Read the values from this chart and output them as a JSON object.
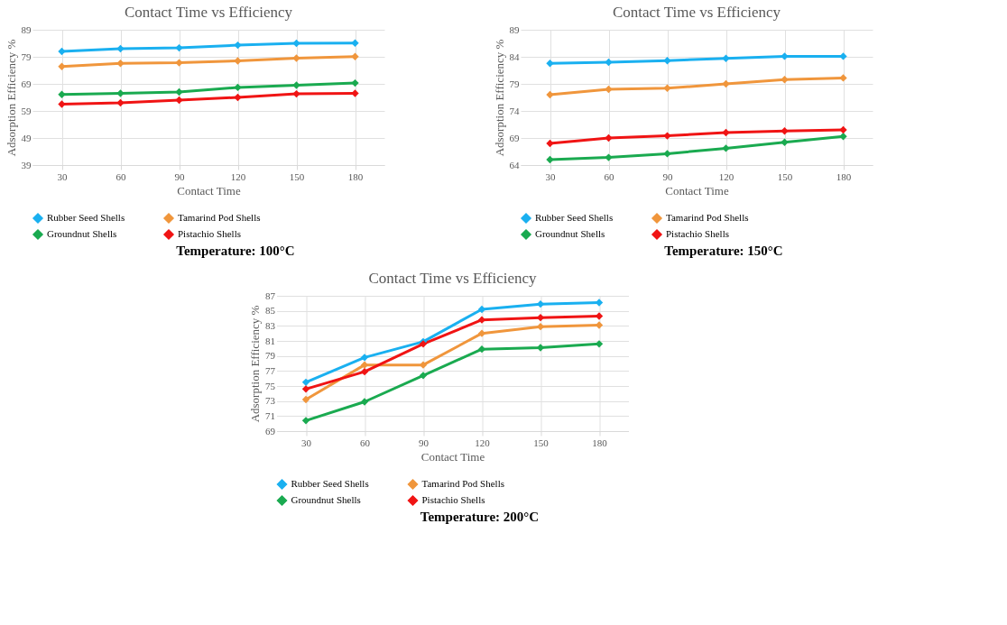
{
  "chart_data": [
    {
      "type": "line",
      "title": "Contact Time vs Efficiency",
      "xlabel": "Contact Time",
      "ylabel": "Adsorption Efficiency %",
      "annotations": [
        "Temperature:  100°C"
      ],
      "x": [
        30,
        60,
        90,
        120,
        150,
        180
      ],
      "xlim": [
        15,
        195
      ],
      "xticks": [
        30,
        60,
        90,
        120,
        150,
        180
      ],
      "ylim": [
        39,
        89
      ],
      "yticks": [
        39,
        49,
        59,
        69,
        79,
        89
      ],
      "grid": true,
      "legend": "bottom",
      "marker": "diamond",
      "line_style": "solid",
      "series": [
        {
          "name": "Rubber Seed Shells",
          "color": "#1ab0f0",
          "values": [
            81.0,
            82.0,
            82.3,
            83.3,
            84.0,
            84.1
          ]
        },
        {
          "name": "Tamarind Pod Shells",
          "color": "#f0963c",
          "values": [
            75.4,
            76.6,
            76.8,
            77.5,
            78.5,
            79.1
          ]
        },
        {
          "name": "Groundnut Shells",
          "color": "#1aaa50",
          "values": [
            65.1,
            65.5,
            66.0,
            67.7,
            68.5,
            69.3
          ]
        },
        {
          "name": "Pistachio Shells",
          "color": "#f01414",
          "values": [
            61.5,
            62.0,
            63.0,
            64.0,
            65.3,
            65.5
          ]
        }
      ]
    },
    {
      "type": "line",
      "title": "Contact Time vs Efficiency",
      "xlabel": "Contact Time",
      "ylabel": "Adsorption Efficiency %",
      "annotations": [
        "Temperature:  150°C"
      ],
      "x": [
        30,
        60,
        90,
        120,
        150,
        180
      ],
      "xlim": [
        15,
        195
      ],
      "xticks": [
        30,
        60,
        90,
        120,
        150,
        180
      ],
      "ylim": [
        64,
        89
      ],
      "yticks": [
        64,
        69,
        74,
        79,
        84,
        89
      ],
      "grid": true,
      "legend": "bottom",
      "marker": "diamond",
      "line_style": "solid",
      "series": [
        {
          "name": "Rubber Seed Shells",
          "color": "#1ab0f0",
          "values": [
            82.8,
            83.0,
            83.3,
            83.7,
            84.1,
            84.1
          ]
        },
        {
          "name": "Tamarind Pod Shells",
          "color": "#f0963c",
          "values": [
            77.0,
            78.0,
            78.2,
            79.0,
            79.8,
            80.1
          ]
        },
        {
          "name": "Groundnut Shells",
          "color": "#1aaa50",
          "values": [
            65.0,
            65.4,
            66.1,
            67.1,
            68.2,
            69.3
          ]
        },
        {
          "name": "Pistachio Shells",
          "color": "#f01414",
          "values": [
            68.0,
            69.0,
            69.4,
            70.0,
            70.3,
            70.5
          ]
        }
      ]
    },
    {
      "type": "line",
      "title": "Contact Time vs Efficiency",
      "xlabel": "Contact Time",
      "ylabel": "Adsorption Efficiency %",
      "annotations": [
        "Temperature:  200°C"
      ],
      "x": [
        30,
        60,
        90,
        120,
        150,
        180
      ],
      "xlim": [
        15,
        195
      ],
      "xticks": [
        30,
        60,
        90,
        120,
        150,
        180
      ],
      "ylim": [
        69,
        87
      ],
      "yticks": [
        69,
        71,
        73,
        75,
        77,
        79,
        81,
        83,
        85,
        87
      ],
      "grid": true,
      "legend": "bottom",
      "marker": "diamond",
      "line_style": "solid",
      "series": [
        {
          "name": "Rubber Seed Shells",
          "color": "#1ab0f0",
          "values": [
            75.5,
            78.8,
            80.9,
            85.2,
            85.9,
            86.1
          ]
        },
        {
          "name": "Tamarind Pod Shells",
          "color": "#f0963c",
          "values": [
            73.2,
            77.8,
            77.8,
            82.0,
            82.9,
            83.1
          ]
        },
        {
          "name": "Groundnut Shells",
          "color": "#1aaa50",
          "values": [
            70.4,
            72.9,
            76.4,
            79.9,
            80.1,
            80.6
          ]
        },
        {
          "name": "Pistachio Shells",
          "color": "#f01414",
          "values": [
            74.6,
            76.9,
            80.6,
            83.8,
            84.1,
            84.3
          ]
        }
      ]
    }
  ]
}
